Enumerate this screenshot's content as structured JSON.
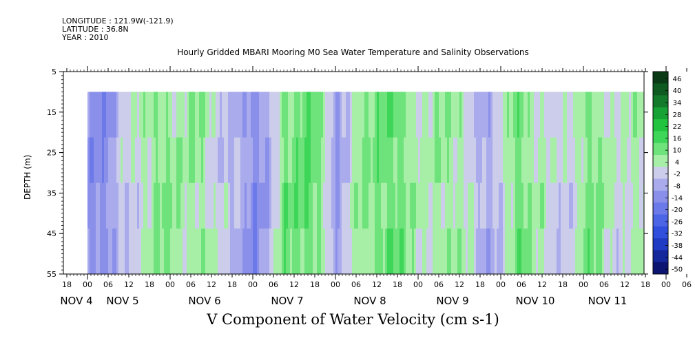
{
  "header": {
    "longitude": "LONGITUDE : 121.9W(-121.9)",
    "latitude": "LATITUDE : 36.8N",
    "year": "YEAR : 2010"
  },
  "chart_data": {
    "type": "heatmap",
    "title": "Hourly Gridded MBARI Mooring M0 Sea Water Temperature and Salinity Observations",
    "xlabel": "V Component of Water Velocity (cm s-1)",
    "ylabel": "DEPTH (m)",
    "ylim": [
      55,
      5
    ],
    "y_ticks": [
      "5",
      "15",
      "25",
      "35",
      "45",
      "55"
    ],
    "x_hour_ticks": [
      "18",
      "00",
      "06",
      "12",
      "18",
      "00",
      "06",
      "12",
      "18",
      "00",
      "06",
      "12",
      "18",
      "00",
      "06",
      "12",
      "18",
      "00",
      "06",
      "12",
      "18",
      "00",
      "06",
      "12",
      "18",
      "00",
      "06",
      "12",
      "18",
      "00",
      "06",
      "12",
      "18",
      "00",
      "06",
      "12",
      "18"
    ],
    "x_day_labels": [
      "NOV  4",
      "NOV  5",
      "NOV  6",
      "NOV  7",
      "NOV  8",
      "NOV  9",
      "NOV 10",
      "NOV 11"
    ],
    "data_depth_range": [
      10,
      55
    ],
    "colorbar": {
      "labels": [
        "46",
        "40",
        "34",
        "28",
        "22",
        "16",
        "10",
        "4",
        "-2",
        "-8",
        "-14",
        "-20",
        "-26",
        "-32",
        "-38",
        "-44",
        "-50"
      ],
      "colors": [
        "#0a3b16",
        "#0f5a21",
        "#127a2a",
        "#17a236",
        "#22c43f",
        "#3dd658",
        "#6ee27b",
        "#a7efa7",
        "#cccceb",
        "#a9abed",
        "#8a90ea",
        "#6c79e8",
        "#4c64e6",
        "#2f4fdc",
        "#1f3ac3",
        "#14279b",
        "#0b1470"
      ]
    },
    "pattern": [
      {
        "x": 0.0,
        "v": -10
      },
      {
        "x": 1.0,
        "v": -8
      },
      {
        "x": 2.5,
        "v": 6
      },
      {
        "x": 4.0,
        "v": 10
      },
      {
        "x": 5.5,
        "v": 6
      },
      {
        "x": 6.5,
        "v": 2
      },
      {
        "x": 7.0,
        "v": -4
      },
      {
        "x": 8.0,
        "v": -10
      },
      {
        "x": 9.0,
        "v": -2
      },
      {
        "x": 9.5,
        "v": 12
      },
      {
        "x": 10.5,
        "v": 16
      },
      {
        "x": 11.5,
        "v": 4
      },
      {
        "x": 12.0,
        "v": -6
      },
      {
        "x": 13.0,
        "v": 6
      },
      {
        "x": 14.0,
        "v": 14
      },
      {
        "x": 15.5,
        "v": 10
      },
      {
        "x": 16.5,
        "v": 4
      },
      {
        "x": 17.5,
        "v": 10
      },
      {
        "x": 18.0,
        "v": 8
      },
      {
        "x": 19.0,
        "v": -6
      },
      {
        "x": 20.0,
        "v": 2
      },
      {
        "x": 21.0,
        "v": 12
      },
      {
        "x": 22.0,
        "v": 6
      },
      {
        "x": 22.5,
        "v": -2
      },
      {
        "x": 23.5,
        "v": 4
      },
      {
        "x": 24.0,
        "v": 10
      },
      {
        "x": 25.0,
        "v": 8
      },
      {
        "x": 26.0,
        "v": 2
      },
      {
        "x": 27.0,
        "v": 6
      },
      {
        "x": 27.5,
        "v": 12
      },
      {
        "x": 28.0,
        "v": 4
      },
      {
        "x": 28.5,
        "v": -4
      },
      {
        "x": 29.0,
        "v": -8
      },
      {
        "x": 30.0,
        "v": -2
      },
      {
        "x": 31.0,
        "v": 2
      },
      {
        "x": 32.0,
        "v": -6
      },
      {
        "x": 33.0,
        "v": -10
      },
      {
        "x": 34.0,
        "v": -8
      },
      {
        "x": 35.0,
        "v": -4
      },
      {
        "x": 35.6,
        "v": -14
      },
      {
        "x": 36.2,
        "v": -10
      },
      {
        "x": 36.8,
        "v": -6
      },
      {
        "x": 37.5,
        "v": -14
      },
      {
        "x": 38.3,
        "v": -20
      },
      {
        "x": 39.2,
        "v": -16
      },
      {
        "x": 39.8,
        "v": -8
      },
      {
        "x": 40.4,
        "v": -2
      },
      {
        "x": 41.0,
        "v": -10
      },
      {
        "x": 42.0,
        "v": -18
      },
      {
        "x": 43.0,
        "v": -22
      },
      {
        "x": 44.0,
        "v": -20
      }
    ]
  }
}
